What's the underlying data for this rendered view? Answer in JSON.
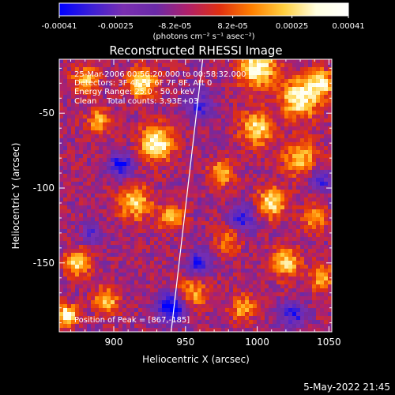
{
  "chart_data": {
    "type": "heatmap",
    "title": "Reconstructed RHESSI Image",
    "xlabel": "Heliocentric X (arcsec)",
    "ylabel": "Heliocentric Y (arcsec)",
    "xlim": [
      862,
      1052
    ],
    "ylim": [
      -196,
      -14
    ],
    "xticks": [
      900,
      950,
      1000,
      1050
    ],
    "yticks": [
      -50,
      -100,
      -150
    ],
    "colorbar": {
      "ticks": [
        "-0.00041",
        "-0.00025",
        "-8.2e-05",
        "8.2e-05",
        "0.00025",
        "0.00041"
      ],
      "tick_values": [
        -0.00041,
        -0.00025,
        -8.2e-05,
        8.2e-05,
        0.00025,
        0.00041
      ],
      "range": [
        -0.00041,
        0.00041
      ],
      "unit_label": "(photons cm⁻² s⁻¹ asec⁻²)"
    },
    "annotations": {
      "time": "25-Mar-2006 00:56:20.000 to 00:58:32.000",
      "detectors": "Detectors: 3F 4F 5F 6F 7F 8F, Att 0",
      "energy": "Energy Range: 25.0 - 50.0 keV",
      "method": "Clean    Total counts: 3.93E+03",
      "peak": "Position of Peak = [867,-185]"
    },
    "limb_line": {
      "x": [
        940,
        962
      ],
      "y": [
        -196,
        -14
      ]
    },
    "hotspots": [
      {
        "x": 930,
        "y": -70,
        "value": 0.00041,
        "sigma": 8
      },
      {
        "x": 920,
        "y": -30,
        "value": 0.00035,
        "sigma": 7
      },
      {
        "x": 880,
        "y": -28,
        "value": 0.0003,
        "sigma": 6
      },
      {
        "x": 890,
        "y": -55,
        "value": 0.00025,
        "sigma": 6
      },
      {
        "x": 915,
        "y": -110,
        "value": 0.0003,
        "sigma": 8
      },
      {
        "x": 940,
        "y": -120,
        "value": 0.00028,
        "sigma": 6
      },
      {
        "x": 875,
        "y": -150,
        "value": 0.00035,
        "sigma": 6
      },
      {
        "x": 895,
        "y": -175,
        "value": 0.0003,
        "sigma": 6
      },
      {
        "x": 867,
        "y": -185,
        "value": 0.00041,
        "sigma": 5
      },
      {
        "x": 955,
        "y": -170,
        "value": 0.00025,
        "sigma": 7
      },
      {
        "x": 1000,
        "y": -20,
        "value": 0.00041,
        "sigma": 9
      },
      {
        "x": 1030,
        "y": -40,
        "value": 0.00041,
        "sigma": 9
      },
      {
        "x": 1045,
        "y": -30,
        "value": 0.00035,
        "sigma": 6
      },
      {
        "x": 1000,
        "y": -60,
        "value": 0.00035,
        "sigma": 8
      },
      {
        "x": 1030,
        "y": -80,
        "value": 0.0003,
        "sigma": 8
      },
      {
        "x": 1010,
        "y": -110,
        "value": 0.00035,
        "sigma": 7
      },
      {
        "x": 1040,
        "y": -120,
        "value": 0.00025,
        "sigma": 6
      },
      {
        "x": 975,
        "y": -90,
        "value": 0.00028,
        "sigma": 6
      },
      {
        "x": 1020,
        "y": -150,
        "value": 0.0003,
        "sigma": 7
      },
      {
        "x": 1045,
        "y": -160,
        "value": 0.00025,
        "sigma": 6
      },
      {
        "x": 990,
        "y": -180,
        "value": 0.00025,
        "sigma": 6
      },
      {
        "x": 980,
        "y": -135,
        "value": 0.0002,
        "sigma": 6
      }
    ],
    "coldspots": [
      {
        "x": 905,
        "y": -85,
        "value": -0.00035,
        "sigma": 6
      },
      {
        "x": 940,
        "y": -180,
        "value": -0.00041,
        "sigma": 7
      },
      {
        "x": 990,
        "y": -120,
        "value": -0.0003,
        "sigma": 6
      },
      {
        "x": 960,
        "y": -45,
        "value": -0.00025,
        "sigma": 7
      },
      {
        "x": 1025,
        "y": -185,
        "value": -0.0003,
        "sigma": 6
      },
      {
        "x": 885,
        "y": -130,
        "value": -0.00025,
        "sigma": 5
      },
      {
        "x": 1045,
        "y": -95,
        "value": -0.00025,
        "sigma": 5
      },
      {
        "x": 960,
        "y": -150,
        "value": -0.0003,
        "sigma": 6
      }
    ]
  },
  "footer": {
    "date": "5-May-2022 21:45"
  },
  "colors": {
    "background": "#000000",
    "foreground": "#ffffff",
    "colormap": [
      "#0000ff",
      "#3c1fd6",
      "#7a2fb0",
      "#6a2aa8",
      "#b0206a",
      "#e03010",
      "#ff8000",
      "#ffd040",
      "#ffffe0",
      "#ffffff"
    ]
  }
}
